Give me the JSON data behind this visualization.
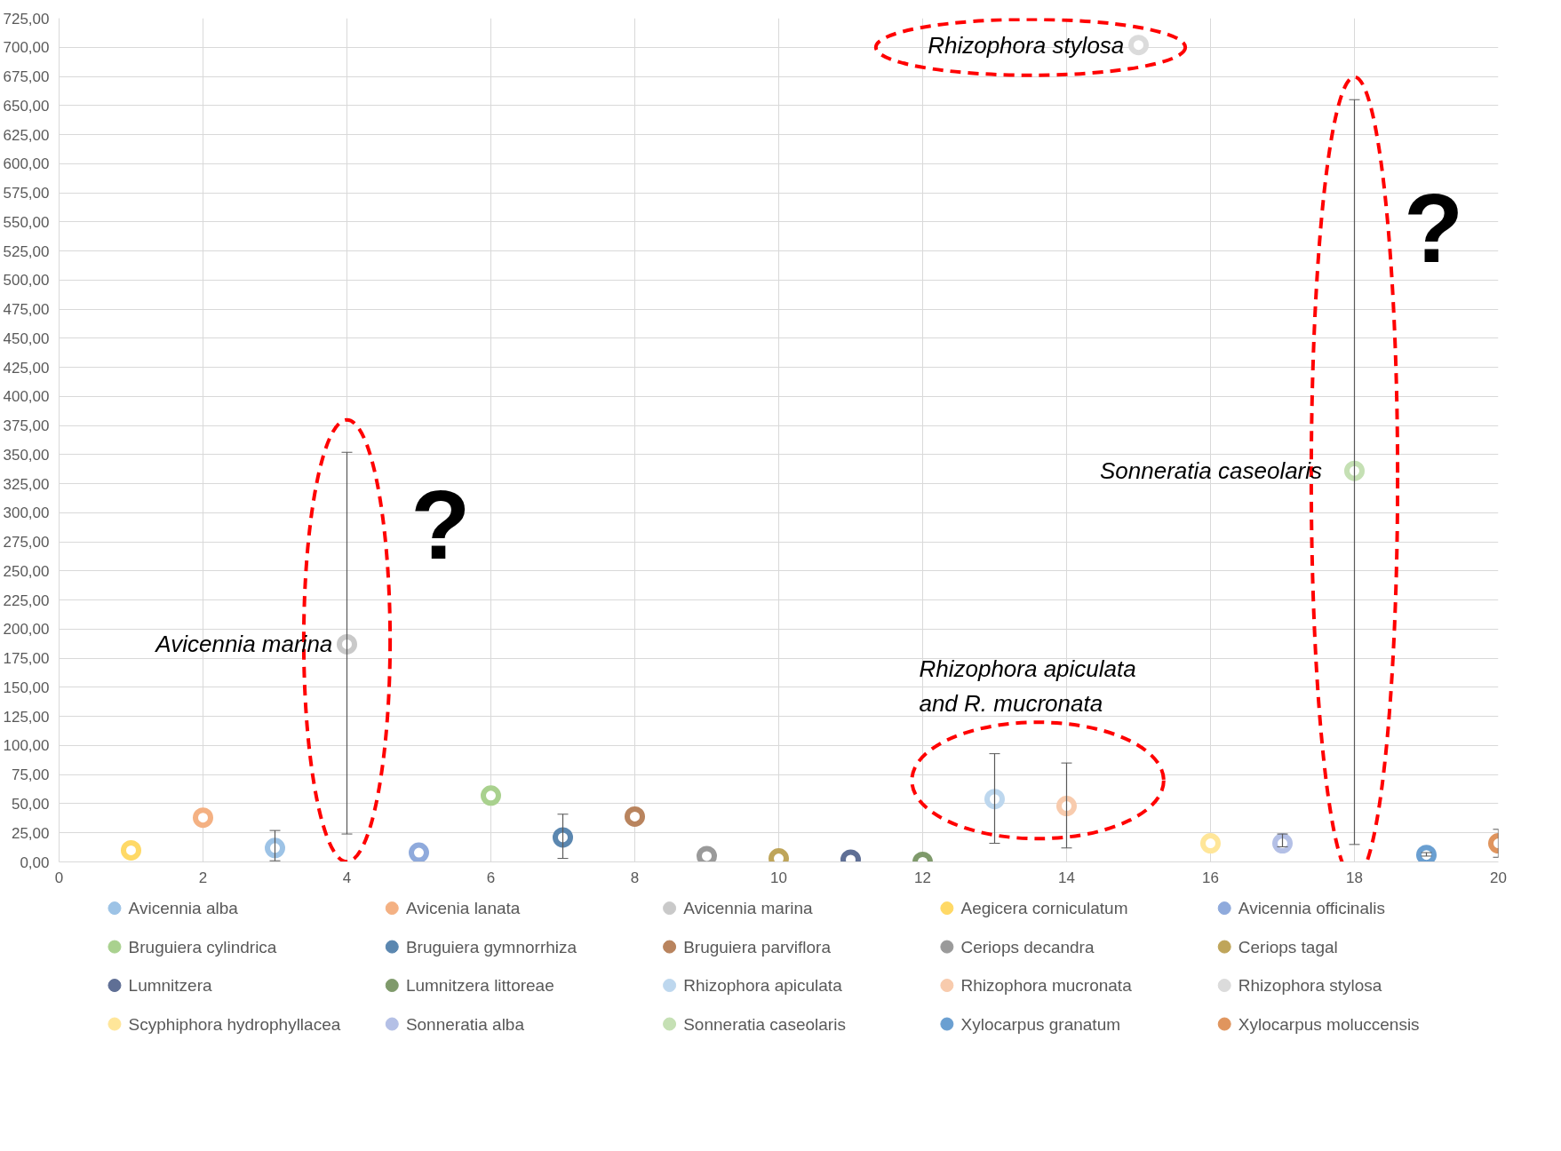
{
  "chart_data": {
    "type": "scatter",
    "marker": "circle",
    "grid": true,
    "legend": "bottom",
    "xlim": [
      0,
      20
    ],
    "ylim": [
      0,
      725
    ],
    "xticks": [
      0,
      2,
      4,
      6,
      8,
      10,
      12,
      14,
      16,
      18,
      20
    ],
    "yticks": [
      {
        "value": 0,
        "label": "0,00"
      },
      {
        "value": 25,
        "label": "25,00"
      },
      {
        "value": 50,
        "label": "50,00"
      },
      {
        "value": 75,
        "label": "75,00"
      },
      {
        "value": 100,
        "label": "100,00"
      },
      {
        "value": 125,
        "label": "125,00"
      },
      {
        "value": 150,
        "label": "150,00"
      },
      {
        "value": 175,
        "label": "175,00"
      },
      {
        "value": 200,
        "label": "200,00"
      },
      {
        "value": 225,
        "label": "225,00"
      },
      {
        "value": 250,
        "label": "250,00"
      },
      {
        "value": 275,
        "label": "275,00"
      },
      {
        "value": 300,
        "label": "300,00"
      },
      {
        "value": 325,
        "label": "325,00"
      },
      {
        "value": 350,
        "label": "350,00"
      },
      {
        "value": 375,
        "label": "375,00"
      },
      {
        "value": 400,
        "label": "400,00"
      },
      {
        "value": 425,
        "label": "425,00"
      },
      {
        "value": 450,
        "label": "450,00"
      },
      {
        "value": 475,
        "label": "475,00"
      },
      {
        "value": 500,
        "label": "500,00"
      },
      {
        "value": 525,
        "label": "525,00"
      },
      {
        "value": 550,
        "label": "550,00"
      },
      {
        "value": 575,
        "label": "575,00"
      },
      {
        "value": 600,
        "label": "600,00"
      },
      {
        "value": 625,
        "label": "625,00"
      },
      {
        "value": 650,
        "label": "650,00"
      },
      {
        "value": 675,
        "label": "675,00"
      },
      {
        "value": 700,
        "label": "700,00"
      },
      {
        "value": 725,
        "label": "725,00"
      }
    ],
    "series": [
      {
        "name": "Avicennia alba",
        "color": "#9dc3e6",
        "x": [
          3
        ],
        "values": [
          12
        ],
        "errors": [
          [
            1,
            27
          ]
        ]
      },
      {
        "name": "Avicenia lanata",
        "color": "#f4b183",
        "x": [
          2
        ],
        "values": [
          38
        ]
      },
      {
        "name": "Avicennia marina",
        "color": "#c9c9c9",
        "x": [
          4
        ],
        "values": [
          187
        ],
        "errors": [
          [
            24,
            352
          ]
        ]
      },
      {
        "name": "Aegicera corniculatum",
        "color": "#ffd966",
        "x": [
          1
        ],
        "values": [
          10
        ]
      },
      {
        "name": "Avicennia officinalis",
        "color": "#8faadc",
        "x": [
          5
        ],
        "values": [
          8
        ]
      },
      {
        "name": "Bruguiera cylindrica",
        "color": "#a9d18e",
        "x": [
          6
        ],
        "values": [
          57
        ]
      },
      {
        "name": "Bruguiera gymnorrhiza",
        "color": "#5b87b0",
        "x": [
          7
        ],
        "values": [
          21
        ],
        "errors": [
          [
            3,
            41
          ]
        ]
      },
      {
        "name": "Bruguiera parviflora",
        "color": "#b9845e",
        "x": [
          8
        ],
        "values": [
          39
        ]
      },
      {
        "name": "Ceriops decandra",
        "color": "#9a9a9a",
        "x": [
          9
        ],
        "values": [
          5
        ]
      },
      {
        "name": "Ceriops tagal",
        "color": "#bfa55a",
        "x": [
          10
        ],
        "values": [
          3
        ]
      },
      {
        "name": "Lumnitzera",
        "color": "#5f6f95",
        "x": [
          11
        ],
        "values": [
          2
        ]
      },
      {
        "name": "Lumnitzera littoreae",
        "color": "#7f9a6b",
        "x": [
          12
        ],
        "values": [
          0
        ]
      },
      {
        "name": "Rhizophora apiculata",
        "color": "#bdd7ee",
        "x": [
          13
        ],
        "values": [
          54
        ],
        "errors": [
          [
            16,
            93
          ]
        ]
      },
      {
        "name": "Rhizophora mucronata",
        "color": "#f8cbad",
        "x": [
          14
        ],
        "values": [
          48
        ],
        "errors": [
          [
            12,
            85
          ]
        ]
      },
      {
        "name": "Rhizophora stylosa",
        "color": "#dbdbdb",
        "x": [
          15
        ],
        "values": [
          702
        ]
      },
      {
        "name": "Scyphiphora hydrophyllacea",
        "color": "#ffe699",
        "x": [
          16
        ],
        "values": [
          16
        ]
      },
      {
        "name": "Sonneratia alba",
        "color": "#b4c0e6",
        "x": [
          17
        ],
        "values": [
          16
        ],
        "errors": [
          [
            13,
            24
          ]
        ]
      },
      {
        "name": "Sonneratia caseolaris",
        "color": "#c5e0b4",
        "x": [
          18
        ],
        "values": [
          336
        ],
        "errors": [
          [
            15,
            655
          ]
        ]
      },
      {
        "name": "Xylocarpus granatum",
        "color": "#6a9fd1",
        "x": [
          19
        ],
        "values": [
          6
        ],
        "errors": [
          [
            5,
            8
          ]
        ]
      },
      {
        "name": "Xylocarpus moluccensis",
        "color": "#e0955e",
        "x": [
          20
        ],
        "values": [
          16
        ],
        "errors": [
          [
            4,
            28
          ]
        ]
      }
    ],
    "annotations": [
      "Avicennia marina",
      "Rhizophora stylosa",
      "Sonneratia caseolaris",
      "Rhizophora apiculata\nand R. mucronata",
      "?",
      "?"
    ]
  }
}
